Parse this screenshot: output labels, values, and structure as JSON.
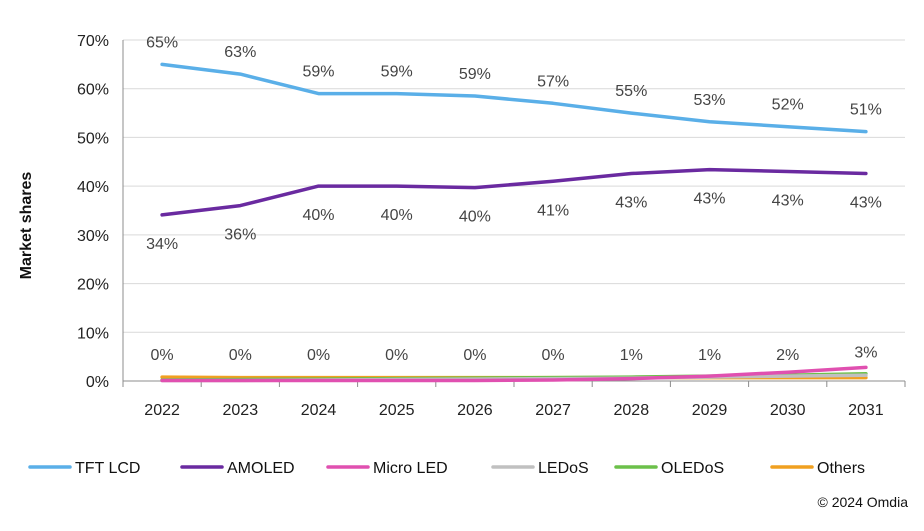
{
  "chart_data": {
    "type": "line",
    "ylabel": "Market shares",
    "ylim": [
      0,
      70
    ],
    "y_ticks": [
      "0%",
      "10%",
      "20%",
      "30%",
      "40%",
      "50%",
      "60%",
      "70%"
    ],
    "y_tick_values": [
      0,
      10,
      20,
      30,
      40,
      50,
      60,
      70
    ],
    "grid": "horizontal",
    "legend_position": "bottom",
    "categories": [
      "2022",
      "2023",
      "2024",
      "2025",
      "2026",
      "2027",
      "2028",
      "2029",
      "2030",
      "2031"
    ],
    "series": [
      {
        "name": "TFT LCD",
        "color": "#5aafe8",
        "values": [
          65,
          63,
          59,
          59,
          58.5,
          57,
          55,
          53.2,
          52.2,
          51.2
        ],
        "labels": [
          "65%",
          "63%",
          "59%",
          "59%",
          "59%",
          "57%",
          "55%",
          "53%",
          "52%",
          "51%"
        ]
      },
      {
        "name": "AMOLED",
        "color": "#6a2aa0",
        "values": [
          34.1,
          36,
          40,
          40,
          39.7,
          41,
          42.6,
          43.4,
          43,
          42.6
        ],
        "labels": [
          "34%",
          "36%",
          "40%",
          "40%",
          "40%",
          "41%",
          "43%",
          "43%",
          "43%",
          "43%"
        ]
      },
      {
        "name": "Micro LED",
        "color": "#e050b0",
        "values": [
          0.1,
          0.1,
          0.1,
          0.1,
          0.1,
          0.2,
          0.5,
          1.0,
          1.8,
          2.8
        ],
        "labels": [
          "0%",
          "0%",
          "0%",
          "0%",
          "0%",
          "0%",
          "1%",
          "1%",
          "2%",
          "3%"
        ]
      },
      {
        "name": "LEDoS",
        "color": "#c0c0c0",
        "values": [
          0.1,
          0.1,
          0.2,
          0.3,
          0.4,
          0.5,
          0.6,
          0.8,
          1.0,
          1.2
        ]
      },
      {
        "name": "OLEDoS",
        "color": "#6cc04a",
        "values": [
          0.2,
          0.3,
          0.4,
          0.5,
          0.6,
          0.7,
          0.8,
          1.0,
          1.2,
          1.5
        ]
      },
      {
        "name": "Others",
        "color": "#f0a020",
        "values": [
          0.8,
          0.7,
          0.7,
          0.7,
          0.7,
          0.7,
          0.7,
          0.7,
          0.7,
          0.7
        ]
      }
    ]
  },
  "copyright": "© 2024 Omdia"
}
